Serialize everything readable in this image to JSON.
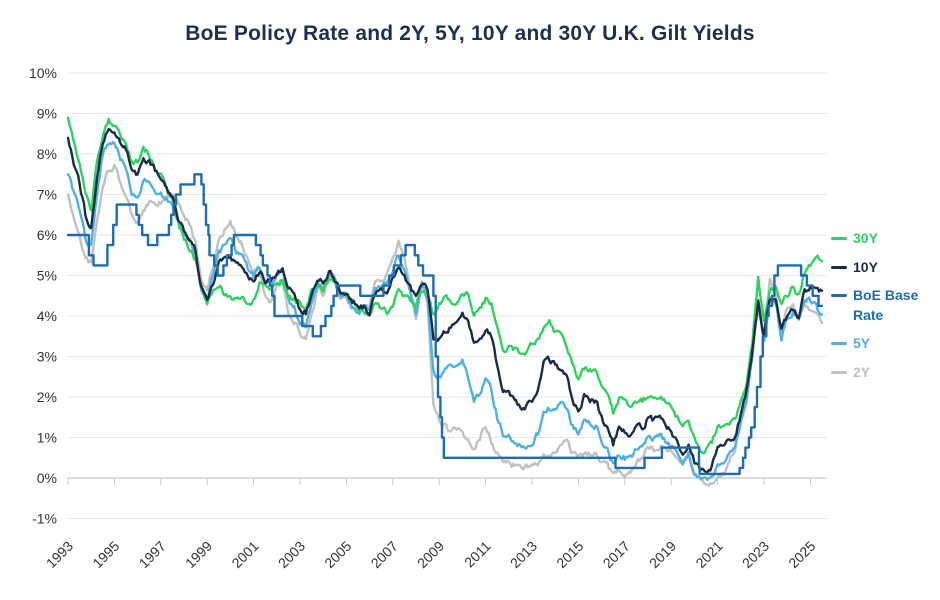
{
  "chart_data": {
    "type": "line",
    "title": "BoE Policy Rate and 2Y, 5Y, 10Y and 30Y U.K. Gilt Yields",
    "title_color": "#1b3054",
    "grid": true,
    "legend_position": "right",
    "x_axis": {
      "range": [
        1993,
        2025.5
      ],
      "ticks": [
        1993,
        1995,
        1997,
        1999,
        2001,
        2003,
        2005,
        2007,
        2009,
        2011,
        2013,
        2015,
        2017,
        2019,
        2021,
        2023,
        2025
      ],
      "tick_labels": [
        "1993",
        "1995",
        "1997",
        "1999",
        "2001",
        "2003",
        "2005",
        "2007",
        "2009",
        "2011",
        "2013",
        "2015",
        "2017",
        "2019",
        "2021",
        "2023",
        "2025"
      ],
      "label_rotation": -45
    },
    "y_axis": {
      "range": [
        -1,
        10
      ],
      "tick_values": [
        10,
        9,
        8,
        7,
        6,
        5,
        4,
        3,
        2,
        1,
        0,
        -1
      ],
      "tick_labels": [
        "10%",
        "9%",
        "8%",
        "7%",
        "6%",
        "5%",
        "4%",
        "3%",
        "2%",
        "1%",
        "0%",
        "-1%"
      ]
    },
    "x_start": 1993.0,
    "x_step": 0.25,
    "series": [
      {
        "name": "2Y",
        "color": "#bfc1c3",
        "values": [
          7.0,
          6.4,
          6.0,
          5.4,
          5.3,
          6.3,
          7.2,
          7.6,
          7.7,
          7.3,
          7.0,
          6.5,
          6.3,
          6.6,
          6.8,
          6.7,
          6.8,
          6.9,
          7.0,
          6.8,
          6.4,
          6.3,
          5.8,
          4.9,
          4.7,
          5.2,
          5.8,
          6.1,
          6.3,
          6.0,
          5.8,
          5.4,
          5.1,
          5.2,
          4.5,
          4.3,
          4.8,
          4.9,
          4.1,
          3.9,
          3.6,
          3.4,
          4.0,
          4.6,
          4.5,
          5.0,
          4.8,
          4.4,
          4.4,
          4.2,
          4.1,
          4.2,
          4.3,
          4.8,
          4.9,
          5.0,
          5.4,
          5.8,
          5.4,
          4.7,
          4.0,
          4.9,
          4.3,
          1.8,
          1.4,
          1.3,
          1.1,
          1.2,
          1.1,
          0.9,
          0.7,
          1.0,
          1.3,
          0.9,
          0.6,
          0.4,
          0.4,
          0.3,
          0.2,
          0.3,
          0.3,
          0.4,
          0.5,
          0.5,
          0.6,
          0.8,
          0.9,
          0.6,
          0.5,
          0.6,
          0.6,
          0.6,
          0.4,
          0.3,
          0.1,
          0.2,
          0.1,
          0.2,
          0.4,
          0.5,
          0.8,
          0.7,
          0.8,
          0.7,
          0.7,
          0.6,
          0.4,
          0.6,
          0.1,
          -0.05,
          -0.1,
          -0.1,
          0.1,
          0.1,
          0.4,
          0.7,
          1.4,
          1.9,
          3.2,
          4.3,
          3.5,
          4.9,
          4.6,
          3.6,
          4.2,
          4.2,
          3.9,
          4.3,
          4.2,
          4.0,
          3.8
        ]
      },
      {
        "name": "5Y",
        "color": "#4fb0e4",
        "values": [
          7.5,
          7.0,
          6.6,
          5.9,
          5.7,
          7.0,
          8.0,
          8.3,
          8.3,
          7.9,
          7.6,
          7.0,
          6.9,
          7.3,
          7.3,
          7.0,
          7.0,
          6.9,
          6.8,
          6.3,
          6.0,
          5.9,
          5.5,
          4.6,
          4.4,
          5.0,
          5.6,
          5.7,
          5.9,
          5.6,
          5.5,
          5.2,
          5.0,
          5.2,
          4.8,
          4.7,
          5.0,
          5.1,
          4.4,
          4.2,
          3.9,
          3.8,
          4.3,
          4.8,
          4.7,
          5.1,
          4.9,
          4.5,
          4.5,
          4.2,
          4.1,
          4.2,
          4.2,
          4.7,
          4.7,
          4.8,
          5.1,
          5.5,
          5.2,
          4.6,
          4.1,
          4.9,
          4.4,
          2.6,
          2.5,
          2.7,
          2.8,
          2.8,
          2.9,
          2.5,
          1.9,
          2.1,
          2.5,
          2.2,
          1.5,
          1.1,
          1.1,
          0.9,
          0.8,
          0.8,
          0.9,
          1.1,
          1.6,
          1.7,
          1.7,
          1.8,
          1.7,
          1.3,
          1.1,
          1.4,
          1.3,
          1.3,
          0.9,
          0.7,
          0.3,
          0.6,
          0.5,
          0.5,
          0.7,
          0.7,
          1.1,
          1.0,
          1.1,
          0.9,
          0.8,
          0.6,
          0.3,
          0.6,
          0.1,
          -0.05,
          -0.1,
          -0.05,
          0.35,
          0.35,
          0.6,
          0.8,
          1.4,
          1.9,
          3.0,
          4.4,
          3.4,
          4.5,
          4.4,
          3.5,
          3.9,
          4.1,
          3.9,
          4.4,
          4.4,
          4.2,
          4.0
        ]
      },
      {
        "name": "30Y",
        "color": "#2fd25f",
        "values": [
          8.9,
          8.3,
          7.8,
          7.0,
          6.6,
          7.8,
          8.5,
          8.8,
          8.7,
          8.4,
          8.2,
          7.8,
          7.8,
          8.1,
          8.0,
          7.7,
          7.5,
          7.2,
          6.9,
          6.3,
          5.9,
          5.7,
          5.4,
          4.7,
          4.3,
          4.6,
          4.8,
          4.5,
          4.5,
          4.4,
          4.4,
          4.3,
          4.4,
          4.8,
          4.7,
          4.7,
          4.8,
          4.9,
          4.5,
          4.4,
          4.3,
          4.2,
          4.6,
          4.8,
          4.7,
          4.9,
          4.8,
          4.5,
          4.5,
          4.3,
          4.2,
          4.1,
          4.0,
          4.3,
          4.2,
          4.1,
          4.3,
          4.6,
          4.5,
          4.4,
          4.3,
          4.6,
          4.5,
          4.0,
          4.3,
          4.5,
          4.3,
          4.4,
          4.6,
          4.5,
          4.0,
          4.2,
          4.4,
          4.3,
          3.7,
          3.1,
          3.2,
          3.2,
          3.0,
          3.1,
          3.3,
          3.4,
          3.7,
          3.8,
          3.6,
          3.5,
          3.3,
          2.8,
          2.4,
          2.7,
          2.7,
          2.7,
          2.3,
          2.1,
          1.6,
          2.0,
          1.9,
          1.8,
          1.9,
          1.9,
          2.0,
          1.9,
          2.0,
          1.9,
          1.8,
          1.5,
          1.2,
          1.4,
          1.0,
          0.7,
          0.7,
          0.9,
          1.3,
          1.3,
          1.3,
          1.4,
          1.9,
          2.4,
          3.3,
          5.0,
          3.9,
          4.6,
          4.7,
          4.3,
          4.5,
          4.7,
          4.5,
          5.1,
          5.3,
          5.5,
          5.4
        ]
      },
      {
        "name": "10Y",
        "color": "#1a2c47",
        "values": [
          8.4,
          7.8,
          7.3,
          6.5,
          6.2,
          7.4,
          8.3,
          8.6,
          8.6,
          8.3,
          8.1,
          7.6,
          7.5,
          7.9,
          7.8,
          7.6,
          7.4,
          7.1,
          6.9,
          6.4,
          6.1,
          5.9,
          5.6,
          4.7,
          4.4,
          4.8,
          5.3,
          5.4,
          5.5,
          5.3,
          5.2,
          5.0,
          4.9,
          5.1,
          4.9,
          4.9,
          5.0,
          5.2,
          4.7,
          4.5,
          4.2,
          4.1,
          4.5,
          4.9,
          4.8,
          5.1,
          4.9,
          4.6,
          4.6,
          4.4,
          4.2,
          4.2,
          4.1,
          4.6,
          4.6,
          4.6,
          4.9,
          5.2,
          5.0,
          4.7,
          4.4,
          4.8,
          4.7,
          3.4,
          3.4,
          3.6,
          3.7,
          3.9,
          4.1,
          3.9,
          3.3,
          3.4,
          3.7,
          3.5,
          2.8,
          2.1,
          2.1,
          1.9,
          1.7,
          1.8,
          1.9,
          2.1,
          2.8,
          2.9,
          2.8,
          2.7,
          2.5,
          1.9,
          1.7,
          2.0,
          1.9,
          1.9,
          1.5,
          1.2,
          0.8,
          1.3,
          1.2,
          1.1,
          1.3,
          1.2,
          1.5,
          1.4,
          1.5,
          1.3,
          1.2,
          0.9,
          0.6,
          0.8,
          0.4,
          0.2,
          0.2,
          0.3,
          0.8,
          0.8,
          0.9,
          1.0,
          1.6,
          2.2,
          3.1,
          4.3,
          3.5,
          4.4,
          4.4,
          3.7,
          4.0,
          4.2,
          4.0,
          4.6,
          4.7,
          4.7,
          4.6
        ]
      }
    ],
    "step_series": {
      "name": "BoE Base Rate",
      "color": "#1e6cb4",
      "points": [
        [
          1993.0,
          6.0
        ],
        [
          1993.9,
          5.5
        ],
        [
          1994.1,
          5.25
        ],
        [
          1994.7,
          5.75
        ],
        [
          1994.95,
          6.25
        ],
        [
          1995.1,
          6.75
        ],
        [
          1995.95,
          6.5
        ],
        [
          1996.05,
          6.25
        ],
        [
          1996.2,
          6.0
        ],
        [
          1996.45,
          5.75
        ],
        [
          1996.85,
          6.0
        ],
        [
          1997.35,
          6.25
        ],
        [
          1997.45,
          6.5
        ],
        [
          1997.55,
          6.75
        ],
        [
          1997.65,
          7.0
        ],
        [
          1997.85,
          7.25
        ],
        [
          1998.45,
          7.5
        ],
        [
          1998.75,
          7.25
        ],
        [
          1998.85,
          6.75
        ],
        [
          1998.95,
          6.25
        ],
        [
          1999.05,
          6.0
        ],
        [
          1999.1,
          5.5
        ],
        [
          1999.3,
          5.25
        ],
        [
          1999.45,
          5.0
        ],
        [
          1999.7,
          5.25
        ],
        [
          1999.85,
          5.5
        ],
        [
          2000.05,
          5.75
        ],
        [
          2000.15,
          6.0
        ],
        [
          2001.1,
          5.75
        ],
        [
          2001.3,
          5.5
        ],
        [
          2001.4,
          5.25
        ],
        [
          2001.6,
          5.0
        ],
        [
          2001.7,
          4.75
        ],
        [
          2001.8,
          4.5
        ],
        [
          2001.9,
          4.0
        ],
        [
          2003.1,
          3.75
        ],
        [
          2003.55,
          3.5
        ],
        [
          2003.9,
          3.75
        ],
        [
          2004.1,
          4.0
        ],
        [
          2004.35,
          4.25
        ],
        [
          2004.45,
          4.5
        ],
        [
          2004.6,
          4.75
        ],
        [
          2005.6,
          4.5
        ],
        [
          2006.6,
          4.75
        ],
        [
          2006.85,
          5.0
        ],
        [
          2007.05,
          5.25
        ],
        [
          2007.35,
          5.5
        ],
        [
          2007.55,
          5.75
        ],
        [
          2007.95,
          5.5
        ],
        [
          2008.1,
          5.25
        ],
        [
          2008.3,
          5.0
        ],
        [
          2008.75,
          4.5
        ],
        [
          2008.85,
          3.0
        ],
        [
          2008.95,
          2.0
        ],
        [
          2009.05,
          1.5
        ],
        [
          2009.12,
          1.0
        ],
        [
          2009.2,
          0.5
        ],
        [
          2016.6,
          0.25
        ],
        [
          2017.85,
          0.5
        ],
        [
          2018.6,
          0.75
        ],
        [
          2020.2,
          0.25
        ],
        [
          2020.23,
          0.1
        ],
        [
          2021.95,
          0.25
        ],
        [
          2022.1,
          0.5
        ],
        [
          2022.2,
          0.75
        ],
        [
          2022.35,
          1.0
        ],
        [
          2022.45,
          1.25
        ],
        [
          2022.6,
          1.75
        ],
        [
          2022.7,
          2.25
        ],
        [
          2022.85,
          3.0
        ],
        [
          2022.95,
          3.5
        ],
        [
          2023.1,
          4.0
        ],
        [
          2023.2,
          4.25
        ],
        [
          2023.35,
          4.5
        ],
        [
          2023.45,
          5.0
        ],
        [
          2023.6,
          5.25
        ],
        [
          2024.6,
          5.0
        ],
        [
          2024.85,
          4.75
        ],
        [
          2025.1,
          4.5
        ],
        [
          2025.35,
          4.25
        ]
      ]
    },
    "legend": [
      {
        "label": "30Y",
        "color": "#2fd25f"
      },
      {
        "label": "10Y",
        "color": "#1a2c47"
      },
      {
        "label": "BoE Base Rate",
        "color": "#1e6cb4"
      },
      {
        "label": "5Y",
        "color": "#4fb0e4"
      },
      {
        "label": "2Y",
        "color": "#bfc1c3"
      }
    ]
  }
}
